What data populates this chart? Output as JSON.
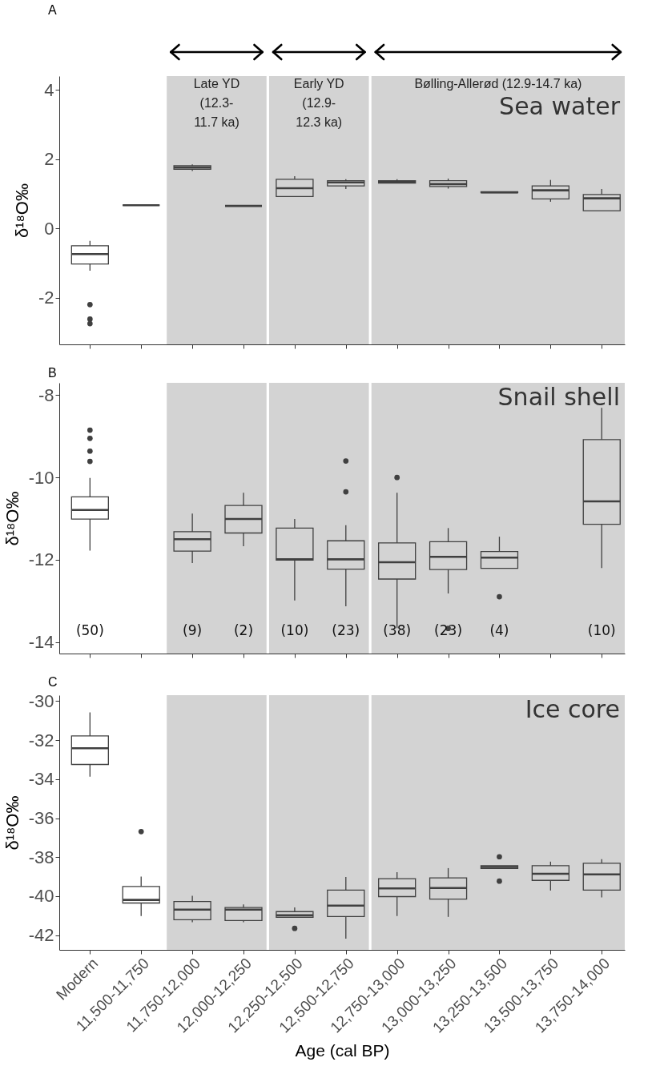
{
  "chart_data": [
    {
      "type": "box",
      "title": "A",
      "ylabel": "δ¹⁸O‰",
      "categories": [
        "Modern",
        "11,500-11,750",
        "11,750-12,000",
        "12,000-12,250",
        "12,250-12,500",
        "12,500-12,750",
        "12,750-13,000",
        "13,000-13,250",
        "13,250-13,500",
        "13,500-13,750",
        "13,750-14,000"
      ],
      "series": [
        {
          "color": "#404040",
          "boxes": [
            {
              "low": -1.22,
              "q1": -1.03,
              "median": -0.74,
              "q3": -0.5,
              "high": -0.36,
              "outliers": [
                -2.2,
                -2.62,
                -2.75
              ]
            },
            {
              "low": 0.67,
              "q1": 0.67,
              "median": 0.67,
              "q3": 0.67,
              "high": 0.67
            },
            {
              "low": 1.66,
              "q1": 1.71,
              "median": 1.76,
              "q3": 1.81,
              "high": 1.85
            },
            {
              "low": 0.65,
              "q1": 0.65,
              "median": 0.65,
              "q3": 0.65,
              "high": 0.65
            },
            {
              "low": 0.92,
              "q1": 0.92,
              "median": 1.16,
              "q3": 1.42,
              "high": 1.51
            },
            {
              "low": 1.14,
              "q1": 1.23,
              "median": 1.33,
              "q3": 1.38,
              "high": 1.42
            },
            {
              "low": 1.3,
              "q1": 1.31,
              "median": 1.35,
              "q3": 1.38,
              "high": 1.42
            },
            {
              "low": 1.15,
              "q1": 1.21,
              "median": 1.28,
              "q3": 1.38,
              "high": 1.44
            },
            {
              "low": 1.03,
              "q1": 1.03,
              "median": 1.04,
              "q3": 1.06,
              "high": 1.06
            },
            {
              "low": 0.77,
              "q1": 0.85,
              "median": 1.1,
              "q3": 1.23,
              "high": 1.4
            },
            {
              "low": 0.51,
              "q1": 0.51,
              "median": 0.87,
              "q3": 0.98,
              "high": 1.14
            }
          ]
        }
      ],
      "ylim": [
        -3.35,
        4.4
      ],
      "yticks": [
        -2,
        0,
        2,
        4
      ],
      "tick_labels": "y",
      "bands": [
        {
          "axis": "x",
          "from": "11,750-12,000",
          "to": "12,000-12,250",
          "label": "Late YD\n(12.3-\n11.7 ka)",
          "color": "#d3d3d3"
        },
        {
          "axis": "x",
          "from": "12,250-12,500",
          "to": "12,500-12,750",
          "label": "Early YD\n(12.9-\n12.3 ka)",
          "color": "#d3d3d3"
        },
        {
          "axis": "x",
          "from": "12,750-13,000",
          "to": "13,750-14,000",
          "label": "Bølling-Allerød (12.9-14.7 ka)",
          "color": "#d3d3d3"
        }
      ],
      "annotations": [
        "Sea water"
      ]
    },
    {
      "type": "box",
      "title": "B",
      "ylabel": "δ¹⁸O‰",
      "categories": [
        "Modern",
        "11,500-11,750",
        "11,750-12,000",
        "12,000-12,250",
        "12,250-12,500",
        "12,500-12,750",
        "12,750-13,000",
        "13,000-13,250",
        "13,250-13,500",
        "13,500-13,750",
        "13,750-14,000"
      ],
      "series": [
        {
          "color": "#404040",
          "boxes": [
            {
              "low": -11.78,
              "q1": -11.01,
              "median": -10.79,
              "q3": -10.47,
              "high": -10.01,
              "outliers": [
                -8.85,
                -9.05,
                -9.36,
                -9.61
              ]
            },
            null,
            {
              "low": -12.08,
              "q1": -11.79,
              "median": -11.5,
              "q3": -11.32,
              "high": -10.88
            },
            {
              "low": -11.67,
              "q1": -11.35,
              "median": -11.01,
              "q3": -10.68,
              "high": -10.37
            },
            {
              "low": -12.99,
              "q1": -12.01,
              "median": -11.99,
              "q3": -11.23,
              "high": -11.01
            },
            {
              "low": -13.13,
              "q1": -12.23,
              "median": -11.99,
              "q3": -11.54,
              "high": -11.16,
              "outliers": [
                -9.6,
                -10.35
              ]
            },
            {
              "low": -13.66,
              "q1": -12.47,
              "median": -12.06,
              "q3": -11.59,
              "high": -10.37,
              "outliers": [
                -10.0
              ]
            },
            {
              "low": -12.82,
              "q1": -12.24,
              "median": -11.93,
              "q3": -11.56,
              "high": -11.23,
              "outliers": [
                -13.67
              ]
            },
            {
              "low": -12.21,
              "q1": -12.21,
              "median": -11.95,
              "q3": -11.8,
              "high": -11.44,
              "outliers": [
                -12.9
              ]
            },
            null,
            {
              "low": -12.2,
              "q1": -11.14,
              "median": -10.58,
              "q3": -9.08,
              "high": -8.31
            }
          ]
        }
      ],
      "ylim": [
        -14.28,
        -7.7
      ],
      "yticks": [
        -14,
        -12,
        -10,
        -8
      ],
      "tick_labels": "y",
      "bands": [
        {
          "axis": "x",
          "from": "11,750-12,000",
          "to": "12,000-12,250",
          "color": "#d3d3d3"
        },
        {
          "axis": "x",
          "from": "12,250-12,500",
          "to": "12,500-12,750",
          "color": "#d3d3d3"
        },
        {
          "axis": "x",
          "from": "12,750-13,000",
          "to": "13,750-14,000",
          "color": "#d3d3d3"
        }
      ],
      "annotations": [
        "Snail shell",
        "(50)",
        "(9)",
        "(2)",
        "(10)",
        "(23)",
        "(38)",
        "(23)",
        "(4)",
        "(10)"
      ]
    },
    {
      "type": "box",
      "title": "C",
      "xlabel": "Age (cal BP)",
      "ylabel": "δ¹⁸O‰",
      "categories": [
        "Modern",
        "11,500-11,750",
        "11,750-12,000",
        "12,000-12,250",
        "12,250-12,500",
        "12,500-12,750",
        "12,750-13,000",
        "13,000-13,250",
        "13,250-13,500",
        "13,500-13,750",
        "13,750-14,000"
      ],
      "series": [
        {
          "color": "#404040",
          "boxes": [
            {
              "low": -33.88,
              "q1": -33.25,
              "median": -32.42,
              "q3": -31.79,
              "high": -30.58
            },
            {
              "low": -41.02,
              "q1": -40.35,
              "median": -40.19,
              "q3": -39.5,
              "high": -39.0,
              "outliers": [
                -36.69
              ]
            },
            {
              "low": -41.33,
              "q1": -41.21,
              "median": -40.69,
              "q3": -40.27,
              "high": -39.98
            },
            {
              "low": -41.33,
              "q1": -41.25,
              "median": -40.69,
              "q3": -40.58,
              "high": -40.42
            },
            {
              "low": -41.08,
              "q1": -41.08,
              "median": -40.98,
              "q3": -40.79,
              "high": -40.58,
              "outliers": [
                -41.65
              ]
            },
            {
              "low": -42.18,
              "q1": -41.04,
              "median": -40.48,
              "q3": -39.69,
              "high": -39.02
            },
            {
              "low": -41.02,
              "q1": -40.02,
              "median": -39.6,
              "q3": -39.1,
              "high": -38.77
            },
            {
              "low": -41.06,
              "q1": -40.15,
              "median": -39.58,
              "q3": -39.06,
              "high": -38.56
            },
            {
              "low": -38.58,
              "q1": -38.58,
              "median": -38.5,
              "q3": -38.44,
              "high": -38.44,
              "outliers": [
                -37.98,
                -39.23
              ]
            },
            {
              "low": -39.71,
              "q1": -39.19,
              "median": -38.85,
              "q3": -38.44,
              "high": -38.23
            },
            {
              "low": -40.06,
              "q1": -39.69,
              "median": -38.88,
              "q3": -38.31,
              "high": -38.1
            }
          ]
        }
      ],
      "ylim": [
        -42.75,
        -29.7
      ],
      "yticks": [
        -42,
        -40,
        -38,
        -36,
        -34,
        -32,
        -30
      ],
      "bands": [
        {
          "axis": "x",
          "from": "11,750-12,000",
          "to": "12,000-12,250",
          "color": "#d3d3d3"
        },
        {
          "axis": "x",
          "from": "12,250-12,500",
          "to": "12,500-12,750",
          "color": "#d3d3d3"
        },
        {
          "axis": "x",
          "from": "12,750-13,000",
          "to": "13,750-14,000",
          "color": "#d3d3d3"
        }
      ],
      "annotations": [
        "Ice core"
      ]
    }
  ]
}
